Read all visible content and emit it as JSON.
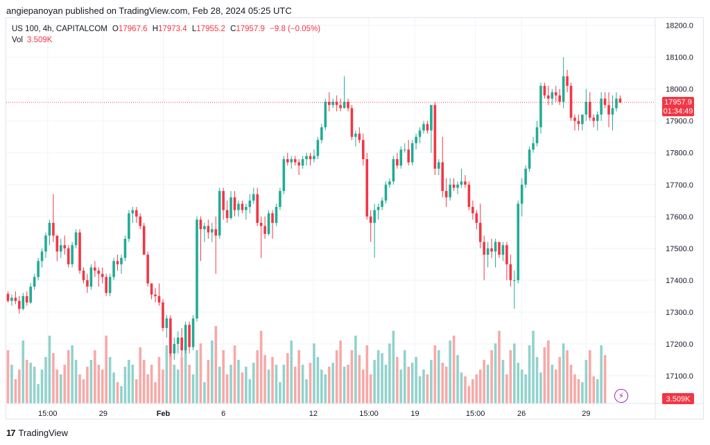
{
  "publisher_line": "angiepanoyan published on TradingView.com, Feb 28, 2024 05:25 UTC",
  "legend": {
    "symbol": "US 100, 4h, CAPITALCOM",
    "o_label": "O",
    "o_value": "17967.6",
    "h_label": "H",
    "h_value": "17973.4",
    "l_label": "L",
    "l_value": "17955.2",
    "c_label": "C",
    "c_value": "17957.9",
    "change": "−9.8 (−0.05%)",
    "vol_label": "Vol",
    "vol_value": "3.509K"
  },
  "price_tag": {
    "price": "17957.9",
    "countdown": "01:34:49"
  },
  "volume_tag": "3.509K",
  "footer": {
    "brand": "TradingView",
    "logo_mark": "17"
  },
  "colors": {
    "up": "#22ab94",
    "down": "#f23645",
    "up_vol": "#92d2cc",
    "down_vol": "#f7a9a7",
    "grid": "#f0f3fa",
    "text": "#131722",
    "flash": "#9c27b0"
  },
  "icons": {
    "flash": "lightning-icon"
  },
  "chart_data": {
    "type": "candlestick",
    "title": "US 100, 4h, CAPITALCOM",
    "ylim": [
      17010,
      18225
    ],
    "y_ticks": [
      "18200.0",
      "18100.0",
      "18000.0",
      "17900.0",
      "17800.0",
      "17700.0",
      "17600.0",
      "17500.0",
      "17400.0",
      "17300.0",
      "17200.0",
      "17100.0"
    ],
    "y_tick_values": [
      18200,
      18100,
      18000,
      17900,
      17800,
      17700,
      17600,
      17500,
      17400,
      17300,
      17200,
      17100
    ],
    "x_ticks": [
      "15:00",
      "29",
      "Feb",
      "6",
      "12",
      "15:00",
      "19",
      "15:00",
      "26",
      "29"
    ],
    "x_tick_index": [
      10.5,
      25.2,
      41.1,
      57.0,
      80.8,
      95.5,
      107.7,
      123.7,
      135.9,
      153.0
    ],
    "candles": [
      [
        17357,
        17365,
        17330,
        17335
      ],
      [
        17335,
        17355,
        17320,
        17345
      ],
      [
        17345,
        17365,
        17325,
        17335
      ],
      [
        17335,
        17350,
        17295,
        17310
      ],
      [
        17310,
        17360,
        17305,
        17350
      ],
      [
        17350,
        17365,
        17320,
        17330
      ],
      [
        17330,
        17390,
        17325,
        17380
      ],
      [
        17380,
        17420,
        17370,
        17410
      ],
      [
        17410,
        17470,
        17400,
        17460
      ],
      [
        17460,
        17500,
        17440,
        17490
      ],
      [
        17490,
        17550,
        17470,
        17540
      ],
      [
        17540,
        17590,
        17510,
        17580
      ],
      [
        17580,
        17670,
        17520,
        17540
      ],
      [
        17540,
        17540,
        17460,
        17490
      ],
      [
        17490,
        17530,
        17470,
        17510
      ],
      [
        17510,
        17540,
        17480,
        17500
      ],
      [
        17500,
        17510,
        17440,
        17450
      ],
      [
        17450,
        17520,
        17440,
        17510
      ],
      [
        17510,
        17560,
        17500,
        17550
      ],
      [
        17550,
        17560,
        17420,
        17430
      ],
      [
        17430,
        17440,
        17390,
        17400
      ],
      [
        17400,
        17420,
        17360,
        17380
      ],
      [
        17380,
        17450,
        17370,
        17440
      ],
      [
        17440,
        17460,
        17410,
        17430
      ],
      [
        17430,
        17440,
        17380,
        17420
      ],
      [
        17420,
        17440,
        17390,
        17410
      ],
      [
        17410,
        17420,
        17350,
        17360
      ],
      [
        17360,
        17420,
        17350,
        17410
      ],
      [
        17410,
        17470,
        17400,
        17460
      ],
      [
        17460,
        17480,
        17430,
        17450
      ],
      [
        17450,
        17480,
        17420,
        17470
      ],
      [
        17470,
        17540,
        17460,
        17530
      ],
      [
        17530,
        17620,
        17520,
        17610
      ],
      [
        17610,
        17630,
        17580,
        17620
      ],
      [
        17620,
        17630,
        17580,
        17600
      ],
      [
        17600,
        17610,
        17560,
        17570
      ],
      [
        17570,
        17580,
        17480,
        17480
      ],
      [
        17480,
        17490,
        17380,
        17390
      ],
      [
        17390,
        17390,
        17340,
        17355
      ],
      [
        17355,
        17375,
        17330,
        17350
      ],
      [
        17350,
        17390,
        17320,
        17330
      ],
      [
        17330,
        17340,
        17240,
        17250
      ],
      [
        17250,
        17290,
        17220,
        17280
      ],
      [
        17280,
        17290,
        17160,
        17170
      ],
      [
        17170,
        17220,
        17150,
        17200
      ],
      [
        17200,
        17240,
        17170,
        17220
      ],
      [
        17220,
        17250,
        17160,
        17180
      ],
      [
        17180,
        17270,
        17170,
        17260
      ],
      [
        17260,
        17270,
        17170,
        17190
      ],
      [
        17190,
        17290,
        17180,
        17280
      ],
      [
        17280,
        17600,
        17270,
        17590
      ],
      [
        17590,
        17600,
        17460,
        17560
      ],
      [
        17560,
        17580,
        17520,
        17570
      ],
      [
        17570,
        17590,
        17530,
        17550
      ],
      [
        17550,
        17580,
        17520,
        17560
      ],
      [
        17560,
        17600,
        17420,
        17540
      ],
      [
        17540,
        17690,
        17530,
        17680
      ],
      [
        17680,
        17690,
        17590,
        17620
      ],
      [
        17620,
        17650,
        17580,
        17595
      ],
      [
        17595,
        17680,
        17590,
        17660
      ],
      [
        17660,
        17680,
        17600,
        17620
      ],
      [
        17620,
        17650,
        17600,
        17640
      ],
      [
        17640,
        17650,
        17610,
        17620
      ],
      [
        17620,
        17640,
        17590,
        17630
      ],
      [
        17630,
        17670,
        17610,
        17650
      ],
      [
        17650,
        17690,
        17640,
        17670
      ],
      [
        17670,
        17690,
        17570,
        17580
      ],
      [
        17580,
        17600,
        17470,
        17570
      ],
      [
        17570,
        17600,
        17530,
        17545
      ],
      [
        17545,
        17620,
        17540,
        17610
      ],
      [
        17610,
        17620,
        17530,
        17580
      ],
      [
        17580,
        17640,
        17570,
        17630
      ],
      [
        17630,
        17690,
        17620,
        17680
      ],
      [
        17680,
        17790,
        17670,
        17780
      ],
      [
        17780,
        17800,
        17760,
        17770
      ],
      [
        17770,
        17790,
        17750,
        17780
      ],
      [
        17780,
        17790,
        17760,
        17770
      ],
      [
        17770,
        17780,
        17730,
        17760
      ],
      [
        17760,
        17790,
        17750,
        17780
      ],
      [
        17780,
        17800,
        17760,
        17790
      ],
      [
        17790,
        17800,
        17760,
        17780
      ],
      [
        17780,
        17810,
        17770,
        17790
      ],
      [
        17790,
        17850,
        17780,
        17840
      ],
      [
        17840,
        17890,
        17830,
        17880
      ],
      [
        17880,
        17970,
        17870,
        17960
      ],
      [
        17960,
        17990,
        17930,
        17950
      ],
      [
        17950,
        17970,
        17940,
        17960
      ],
      [
        17960,
        17980,
        17930,
        17950
      ],
      [
        17950,
        17970,
        17930,
        17940
      ],
      [
        17940,
        18040,
        17940,
        17960
      ],
      [
        17960,
        17970,
        17930,
        17940
      ],
      [
        17940,
        17950,
        17840,
        17850
      ],
      [
        17850,
        17870,
        17820,
        17860
      ],
      [
        17860,
        17880,
        17830,
        17840
      ],
      [
        17840,
        17860,
        17760,
        17780
      ],
      [
        17780,
        17800,
        17590,
        17600
      ],
      [
        17600,
        17620,
        17520,
        17580
      ],
      [
        17580,
        17640,
        17470,
        17620
      ],
      [
        17620,
        17640,
        17590,
        17630
      ],
      [
        17630,
        17660,
        17620,
        17650
      ],
      [
        17650,
        17710,
        17640,
        17700
      ],
      [
        17700,
        17720,
        17690,
        17710
      ],
      [
        17710,
        17790,
        17700,
        17780
      ],
      [
        17780,
        17800,
        17750,
        17760
      ],
      [
        17760,
        17820,
        17750,
        17810
      ],
      [
        17810,
        17830,
        17800,
        17810
      ],
      [
        17810,
        17840,
        17760,
        17770
      ],
      [
        17770,
        17840,
        17760,
        17830
      ],
      [
        17830,
        17860,
        17810,
        17850
      ],
      [
        17850,
        17880,
        17830,
        17870
      ],
      [
        17870,
        17900,
        17860,
        17890
      ],
      [
        17890,
        17900,
        17860,
        17870
      ],
      [
        17870,
        17950,
        17800,
        17950
      ],
      [
        17950,
        17960,
        17730,
        17750
      ],
      [
        17750,
        17780,
        17730,
        17770
      ],
      [
        17770,
        17850,
        17660,
        17680
      ],
      [
        17680,
        17720,
        17630,
        17660
      ],
      [
        17660,
        17720,
        17650,
        17700
      ],
      [
        17700,
        17720,
        17680,
        17690
      ],
      [
        17690,
        17710,
        17670,
        17700
      ],
      [
        17700,
        17750,
        17690,
        17710
      ],
      [
        17710,
        17730,
        17690,
        17700
      ],
      [
        17700,
        17710,
        17620,
        17630
      ],
      [
        17630,
        17650,
        17590,
        17610
      ],
      [
        17610,
        17620,
        17560,
        17580
      ],
      [
        17580,
        17640,
        17500,
        17520
      ],
      [
        17520,
        17540,
        17400,
        17480
      ],
      [
        17480,
        17520,
        17440,
        17500
      ],
      [
        17500,
        17530,
        17470,
        17490
      ],
      [
        17490,
        17530,
        17440,
        17520
      ],
      [
        17520,
        17520,
        17470,
        17480
      ],
      [
        17480,
        17520,
        17460,
        17510
      ],
      [
        17510,
        17520,
        17400,
        17450
      ],
      [
        17450,
        17480,
        17380,
        17400
      ],
      [
        17400,
        17430,
        17310,
        17400
      ],
      [
        17400,
        17650,
        17390,
        17640
      ],
      [
        17640,
        17720,
        17600,
        17700
      ],
      [
        17700,
        17760,
        17690,
        17750
      ],
      [
        17750,
        17820,
        17740,
        17810
      ],
      [
        17810,
        17850,
        17800,
        17830
      ],
      [
        17830,
        17900,
        17820,
        17880
      ],
      [
        17880,
        18020,
        17860,
        18010
      ],
      [
        18010,
        18020,
        17970,
        17980
      ],
      [
        17980,
        18010,
        17950,
        17970
      ],
      [
        17970,
        18000,
        17950,
        17990
      ],
      [
        17990,
        18010,
        17960,
        17980
      ],
      [
        17980,
        18000,
        17950,
        17960
      ],
      [
        17960,
        18100,
        17940,
        18040
      ],
      [
        18040,
        18060,
        17990,
        18010
      ],
      [
        18010,
        18020,
        17900,
        17910
      ],
      [
        17910,
        17920,
        17870,
        17900
      ],
      [
        17900,
        17920,
        17870,
        17890
      ],
      [
        17890,
        17920,
        17870,
        17920
      ],
      [
        17920,
        18000,
        17900,
        17960
      ],
      [
        17960,
        17990,
        17900,
        17910
      ],
      [
        17910,
        17920,
        17880,
        17900
      ],
      [
        17900,
        17930,
        17870,
        17920
      ],
      [
        17920,
        17990,
        17900,
        17970
      ],
      [
        17970,
        17990,
        17940,
        17950
      ],
      [
        17950,
        17990,
        17880,
        17920
      ],
      [
        17920,
        17980,
        17870,
        17940
      ],
      [
        17940,
        17990,
        17930,
        17970
      ],
      [
        17970,
        17980,
        17955,
        17958
      ]
    ],
    "volume": [
      0.55,
      0.4,
      0.25,
      0.35,
      0.65,
      0.45,
      0.42,
      0.38,
      0.2,
      0.35,
      0.48,
      0.7,
      0.52,
      0.35,
      0.3,
      0.4,
      0.55,
      0.6,
      0.45,
      0.3,
      0.25,
      0.38,
      0.45,
      0.55,
      0.4,
      0.35,
      0.7,
      0.48,
      0.32,
      0.22,
      0.18,
      0.38,
      0.45,
      0.4,
      0.25,
      0.58,
      0.45,
      0.3,
      0.4,
      0.22,
      0.48,
      0.35,
      0.6,
      0.75,
      0.4,
      0.35,
      0.48,
      0.6,
      0.4,
      0.3,
      0.55,
      0.62,
      0.22,
      0.45,
      0.65,
      0.8,
      0.38,
      0.55,
      0.3,
      0.4,
      0.6,
      0.45,
      0.32,
      0.38,
      0.25,
      0.42,
      0.55,
      0.75,
      0.5,
      0.35,
      0.48,
      0.4,
      0.22,
      0.4,
      0.52,
      0.65,
      0.38,
      0.55,
      0.4,
      0.25,
      0.42,
      0.62,
      0.48,
      0.35,
      0.3,
      0.38,
      0.42,
      0.55,
      0.65,
      0.38,
      0.4,
      0.55,
      0.7,
      0.5,
      0.35,
      0.6,
      0.3,
      0.45,
      0.55,
      0.52,
      0.4,
      0.62,
      0.75,
      0.48,
      0.35,
      0.55,
      0.38,
      0.42,
      0.48,
      0.28,
      0.35,
      0.3,
      0.45,
      0.6,
      0.55,
      0.42,
      0.38,
      0.65,
      0.7,
      0.5,
      0.32,
      0.28,
      0.18,
      0.25,
      0.3,
      0.35,
      0.45,
      0.4,
      0.55,
      0.62,
      0.75,
      0.45,
      0.3,
      0.55,
      0.62,
      0.42,
      0.35,
      0.3,
      0.6,
      0.75,
      0.48,
      0.32,
      0.58,
      0.65,
      0.4,
      0.35,
      0.48,
      0.62,
      0.55,
      0.4,
      0.3,
      0.25,
      0.22,
      0.45,
      0.55,
      0.28,
      0.25,
      0.6,
      0.5
    ],
    "last_price": 17957.9
  }
}
